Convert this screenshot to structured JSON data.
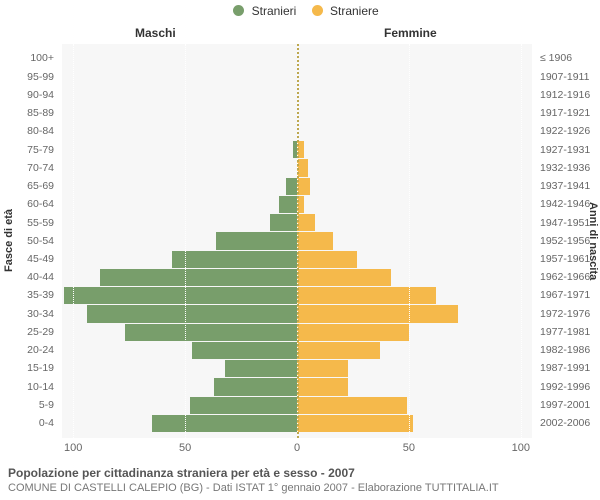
{
  "legend": {
    "male": {
      "label": "Stranieri",
      "color": "#789e6b"
    },
    "female": {
      "label": "Straniere",
      "color": "#f5b94b"
    }
  },
  "header": {
    "left": "Maschi",
    "right": "Femmine"
  },
  "axis": {
    "left_title": "Fasce di età",
    "right_title": "Anni di nascita",
    "xmax": 105,
    "ticks": [
      0,
      50,
      100
    ]
  },
  "style": {
    "background": "#f7f7f7",
    "centerline_color": "#bda850",
    "grid_color": "#ffffff",
    "text_color": "#666666"
  },
  "rows": [
    {
      "age": "0-4",
      "year": "2002-2006",
      "m": 65,
      "f": 52
    },
    {
      "age": "5-9",
      "year": "1997-2001",
      "m": 48,
      "f": 49
    },
    {
      "age": "10-14",
      "year": "1992-1996",
      "m": 37,
      "f": 23
    },
    {
      "age": "15-19",
      "year": "1987-1991",
      "m": 32,
      "f": 23
    },
    {
      "age": "20-24",
      "year": "1982-1986",
      "m": 47,
      "f": 37
    },
    {
      "age": "25-29",
      "year": "1977-1981",
      "m": 77,
      "f": 50
    },
    {
      "age": "30-34",
      "year": "1972-1976",
      "m": 94,
      "f": 72
    },
    {
      "age": "35-39",
      "year": "1967-1971",
      "m": 104,
      "f": 62
    },
    {
      "age": "40-44",
      "year": "1962-1966",
      "m": 88,
      "f": 42
    },
    {
      "age": "45-49",
      "year": "1957-1961",
      "m": 56,
      "f": 27
    },
    {
      "age": "50-54",
      "year": "1952-1956",
      "m": 36,
      "f": 16
    },
    {
      "age": "55-59",
      "year": "1947-1951",
      "m": 12,
      "f": 8
    },
    {
      "age": "60-64",
      "year": "1942-1946",
      "m": 8,
      "f": 3
    },
    {
      "age": "65-69",
      "year": "1937-1941",
      "m": 5,
      "f": 6
    },
    {
      "age": "70-74",
      "year": "1932-1936",
      "m": 0,
      "f": 5
    },
    {
      "age": "75-79",
      "year": "1927-1931",
      "m": 2,
      "f": 3
    },
    {
      "age": "80-84",
      "year": "1922-1926",
      "m": 0,
      "f": 0
    },
    {
      "age": "85-89",
      "year": "1917-1921",
      "m": 0,
      "f": 0
    },
    {
      "age": "90-94",
      "year": "1912-1916",
      "m": 0,
      "f": 0
    },
    {
      "age": "95-99",
      "year": "1907-1911",
      "m": 0,
      "f": 0
    },
    {
      "age": "100+",
      "year": "≤ 1906",
      "m": 0,
      "f": 0
    }
  ],
  "caption": {
    "title": "Popolazione per cittadinanza straniera per età e sesso - 2007",
    "subtitle": "COMUNE DI CASTELLI CALEPIO (BG) - Dati ISTAT 1° gennaio 2007 - Elaborazione TUTTITALIA.IT"
  }
}
